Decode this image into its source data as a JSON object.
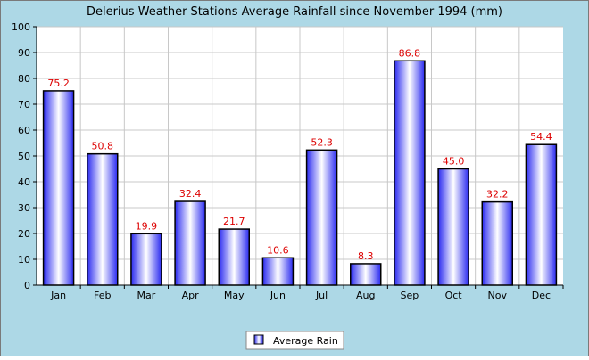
{
  "chart_data": {
    "type": "bar",
    "title": "Delerius Weather Stations Average Rainfall since November 1994 (mm)",
    "categories": [
      "Jan",
      "Feb",
      "Mar",
      "Apr",
      "May",
      "Jun",
      "Jul",
      "Aug",
      "Sep",
      "Oct",
      "Nov",
      "Dec"
    ],
    "series": [
      {
        "name": "Average Rain",
        "values": [
          75.2,
          50.8,
          19.9,
          32.4,
          21.7,
          10.6,
          52.3,
          8.3,
          86.8,
          45.0,
          32.2,
          54.4
        ],
        "labels": [
          "75.2",
          "50.8",
          "19.9",
          "32.4",
          "21.7",
          "10.6",
          "52.3",
          "8.3",
          "86.8",
          "45.0",
          "32.2",
          "54.4"
        ]
      }
    ],
    "xlabel": "",
    "ylabel": "",
    "ylim": [
      0,
      100
    ],
    "yticks": [
      "0",
      "10",
      "20",
      "30",
      "40",
      "50",
      "60",
      "70",
      "80",
      "90",
      "100"
    ],
    "grid": true,
    "legend_position": "bottom-center",
    "colors": {
      "background": "#add8e6",
      "plot_background": "#ffffff",
      "bar_edge": "#0000cc",
      "bar_dark": "#2a2af0",
      "bar_light": "#ffffff",
      "grid": "#c8c8c8",
      "value_label": "#dd0000",
      "text": "#000000"
    }
  }
}
